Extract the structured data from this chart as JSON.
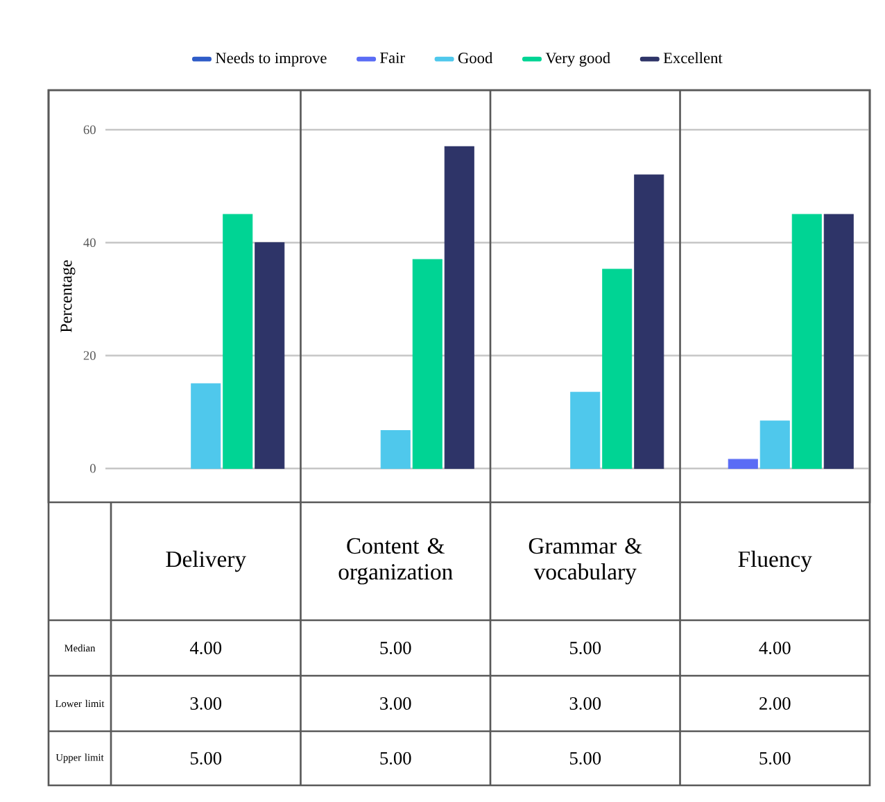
{
  "chart_data": {
    "type": "bar",
    "ylabel": "Percentage",
    "categories": [
      "Delivery",
      "Content & organization",
      "Grammar & vocabulary",
      "Fluency"
    ],
    "series": [
      {
        "name": "Needs to improve",
        "color": "#2e5cc8",
        "values": [
          null,
          null,
          null,
          null
        ]
      },
      {
        "name": "Fair",
        "color": "#5a6cf5",
        "values": [
          null,
          null,
          null,
          1.6
        ]
      },
      {
        "name": "Good",
        "color": "#4fc8ec",
        "values": [
          15,
          6.7,
          13.5,
          8.4
        ]
      },
      {
        "name": "Very good",
        "color": "#00d494",
        "values": [
          45,
          37,
          35.3,
          45
        ]
      },
      {
        "name": "Excellent",
        "color": "#2e3468",
        "values": [
          40,
          57,
          52,
          45
        ]
      }
    ],
    "ylim": [
      -6,
      67
    ],
    "yticks": [
      0,
      20,
      40,
      60
    ],
    "grid": "y",
    "legend": "top",
    "annotations": [
      "Median",
      "4.00",
      "5.00",
      "5.00",
      "4.00",
      "Lower limit",
      "3.00",
      "3.00",
      "3.00",
      "2.00",
      "Upper limit",
      "5.00",
      "5.00",
      "5.00",
      "5.00"
    ]
  }
}
